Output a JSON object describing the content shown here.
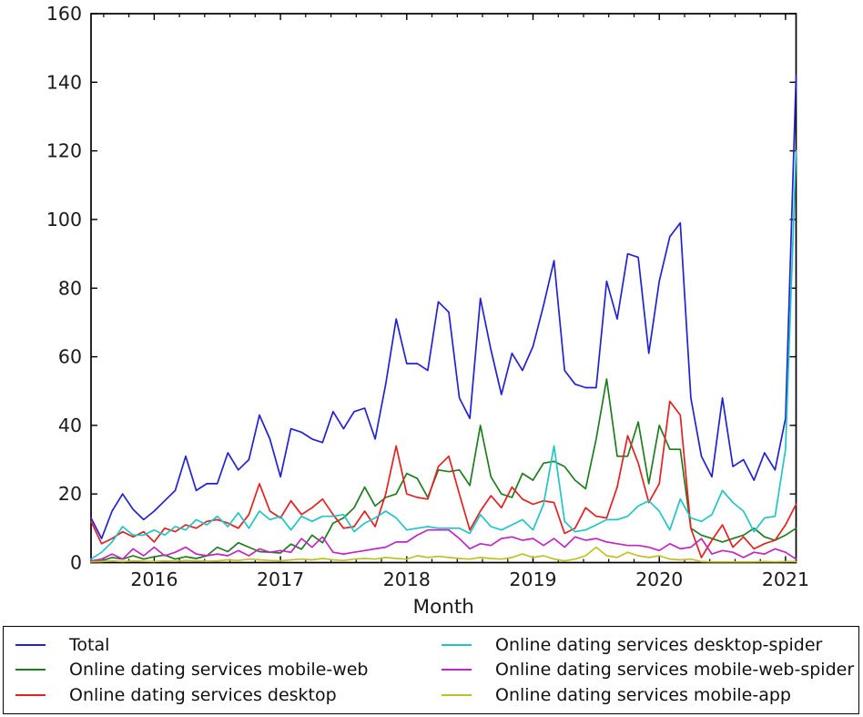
{
  "chart_data": {
    "type": "line",
    "title": "",
    "xlabel": "Month",
    "ylabel": "",
    "ylim": [
      0,
      160
    ],
    "yticks": [
      0,
      20,
      40,
      60,
      80,
      100,
      120,
      140,
      160
    ],
    "xtick_years": [
      "2016",
      "2017",
      "2018",
      "2019",
      "2020",
      "2021"
    ],
    "grid": false,
    "legend_position": "bottom",
    "legend_columns": 2,
    "months": [
      "2015-07",
      "2015-08",
      "2015-09",
      "2015-10",
      "2015-11",
      "2015-12",
      "2016-01",
      "2016-02",
      "2016-03",
      "2016-04",
      "2016-05",
      "2016-06",
      "2016-07",
      "2016-08",
      "2016-09",
      "2016-10",
      "2016-11",
      "2016-12",
      "2017-01",
      "2017-02",
      "2017-03",
      "2017-04",
      "2017-05",
      "2017-06",
      "2017-07",
      "2017-08",
      "2017-09",
      "2017-10",
      "2017-11",
      "2017-12",
      "2018-01",
      "2018-02",
      "2018-03",
      "2018-04",
      "2018-05",
      "2018-06",
      "2018-07",
      "2018-08",
      "2018-09",
      "2018-10",
      "2018-11",
      "2018-12",
      "2019-01",
      "2019-02",
      "2019-03",
      "2019-04",
      "2019-05",
      "2019-06",
      "2019-07",
      "2019-08",
      "2019-09",
      "2019-10",
      "2019-11",
      "2019-12",
      "2020-01",
      "2020-02",
      "2020-03",
      "2020-04",
      "2020-05",
      "2020-06",
      "2020-07",
      "2020-08",
      "2020-09",
      "2020-10",
      "2020-11",
      "2020-12",
      "2021-01",
      "2021-02"
    ],
    "series": [
      {
        "name": "Total",
        "color": "#2222d5",
        "values": [
          13,
          7,
          15,
          20,
          15.5,
          12.5,
          15,
          18,
          21,
          31,
          21,
          23,
          23,
          32,
          27,
          30,
          43,
          36,
          25,
          39,
          38,
          36,
          35,
          44,
          39,
          44,
          45,
          36,
          52,
          71,
          58,
          58,
          56,
          76,
          73,
          48,
          42,
          77,
          62,
          49,
          61,
          56,
          63,
          75,
          88,
          56,
          52,
          51,
          51,
          82,
          71,
          90,
          89,
          61,
          82,
          95,
          99,
          48,
          31,
          25,
          48,
          28,
          30,
          24,
          32,
          27,
          42,
          142
        ]
      },
      {
        "name": "Online dating services mobile-web",
        "color": "#1f7d1f",
        "values": [
          0.3,
          0.5,
          1.5,
          1,
          2,
          1,
          1.7,
          2.2,
          1,
          1.7,
          1.2,
          2,
          4.5,
          3.2,
          5.8,
          4.5,
          3.2,
          3,
          2.8,
          5.4,
          3.9,
          8,
          5.8,
          11.5,
          13,
          16,
          22,
          16.5,
          19,
          20,
          26,
          24.5,
          19,
          27,
          26.5,
          27,
          22.5,
          40,
          25,
          20,
          19,
          26,
          24,
          29,
          29.5,
          28,
          24,
          21.5,
          36,
          53.5,
          31,
          31,
          41,
          23,
          40,
          33,
          33,
          10,
          8,
          7,
          6,
          7,
          8,
          10,
          7.5,
          6.5,
          8,
          10
        ]
      },
      {
        "name": "Online dating services desktop",
        "color": "#e62020",
        "values": [
          12,
          5.5,
          7,
          9,
          7.5,
          9,
          6,
          10,
          9,
          11,
          10,
          12,
          12.5,
          11.5,
          10,
          14,
          23,
          15,
          13,
          18,
          14,
          16,
          18.5,
          14,
          10,
          10.5,
          15,
          10.5,
          20,
          34,
          20,
          19,
          18.5,
          28,
          31,
          20,
          9.5,
          15,
          19.5,
          16,
          22,
          18.5,
          17,
          18,
          17.5,
          8.5,
          10,
          16,
          13.5,
          13,
          22,
          37,
          29,
          17.5,
          23,
          47,
          43,
          10,
          1.5,
          6.5,
          11,
          4.5,
          7.5,
          4,
          5.5,
          6.5,
          11,
          17
        ]
      },
      {
        "name": "Online dating services desktop-spider",
        "color": "#21c5c5",
        "values": [
          1,
          3,
          6,
          10.5,
          8,
          8,
          9.5,
          8,
          10.5,
          9.5,
          12.5,
          11,
          13.5,
          10.5,
          14.5,
          10,
          15,
          12.5,
          13.5,
          9.5,
          13.5,
          12,
          13.5,
          13.5,
          14,
          9,
          11.5,
          13,
          15,
          13,
          9.5,
          10,
          10.5,
          10,
          10,
          10,
          8.5,
          14,
          10.5,
          9.5,
          11,
          12.5,
          9.5,
          17,
          34,
          12,
          9,
          9.5,
          11,
          12.5,
          12.5,
          13.5,
          16.5,
          18,
          15,
          9.5,
          18.5,
          13,
          12,
          14,
          21,
          17.5,
          15,
          9,
          13,
          13.5,
          33,
          120
        ]
      },
      {
        "name": "Online dating services mobile-web-spider",
        "color": "#c226c2",
        "values": [
          0.5,
          1,
          2.5,
          1,
          4,
          2,
          4.5,
          2,
          3,
          4.5,
          2.5,
          2,
          2.5,
          2,
          3.5,
          2,
          4,
          3,
          3.5,
          3,
          7,
          4.5,
          7.5,
          3,
          2.5,
          3,
          3.5,
          4,
          4.5,
          6,
          6,
          8,
          9.5,
          9.5,
          9.5,
          7,
          4,
          5.5,
          5,
          7,
          7.5,
          6.5,
          7,
          5,
          7,
          4.5,
          7.5,
          6.5,
          7,
          6,
          5.5,
          5,
          5,
          4.5,
          3.5,
          5.5,
          4,
          4.5,
          7,
          2.5,
          3.5,
          3,
          1.5,
          3,
          2.5,
          4,
          3,
          1
        ]
      },
      {
        "name": "Online dating services mobile-app",
        "color": "#c0c026",
        "values": [
          0.2,
          0.3,
          0.5,
          0.3,
          0.5,
          0.4,
          0.3,
          0.5,
          0.4,
          0.6,
          0.5,
          0.4,
          0.5,
          0.8,
          0.6,
          1,
          0.8,
          0.6,
          0.5,
          0.8,
          1,
          0.8,
          1.2,
          0.8,
          0.6,
          1,
          1.2,
          1,
          1.5,
          1.2,
          1,
          2,
          1.5,
          1.8,
          1.5,
          1.2,
          1,
          1.5,
          1.2,
          1,
          1.5,
          2.5,
          1.5,
          2,
          1,
          0.5,
          1,
          2,
          4.5,
          2,
          1.5,
          3,
          2,
          1.5,
          2,
          1,
          0.8,
          1,
          0.3,
          0.2,
          0.2,
          0.2,
          0.2,
          0.2,
          0.3,
          0.2,
          0.3,
          0.3
        ]
      }
    ]
  }
}
